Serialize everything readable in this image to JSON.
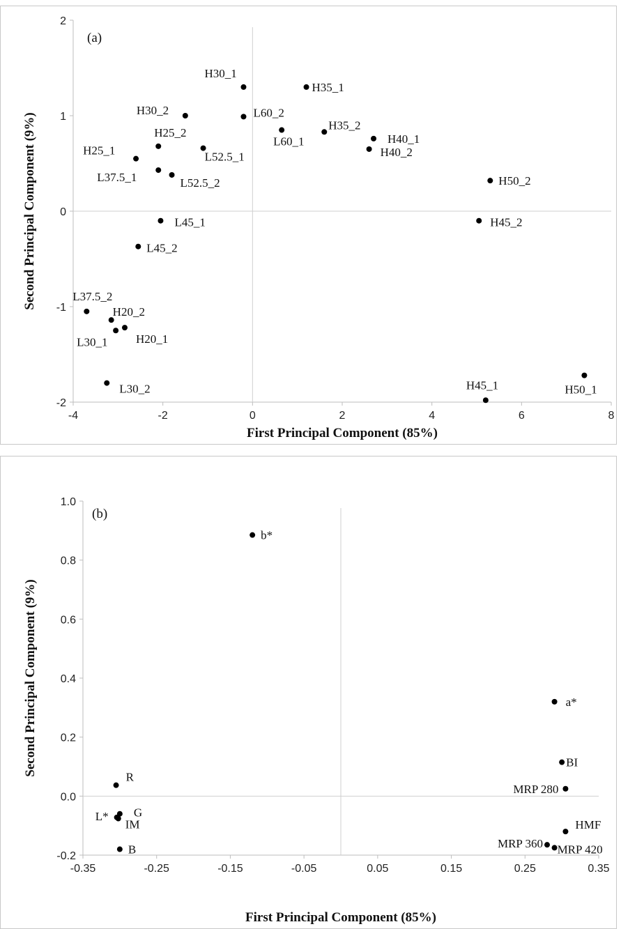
{
  "chart_data": [
    {
      "type": "scatter",
      "panel": "(a)",
      "xlabel": "First Principal Component (85%)",
      "ylabel": "Second Principal Component (9%)",
      "xlim": [
        -4,
        8
      ],
      "ylim": [
        -2,
        2
      ],
      "xticks": [
        "-4",
        "-2",
        "0",
        "2",
        "4",
        "6",
        "8"
      ],
      "yticks": [
        "-2",
        "-1",
        "0",
        "1",
        "2"
      ],
      "grid": false,
      "points": [
        {
          "label": "H30_1",
          "x": -0.2,
          "y": 1.3
        },
        {
          "label": "H35_1",
          "x": 1.2,
          "y": 1.3
        },
        {
          "label": "H30_2",
          "x": -1.5,
          "y": 1.0
        },
        {
          "label": "L60_2",
          "x": -0.2,
          "y": 0.99
        },
        {
          "label": "H25_2",
          "x": -2.1,
          "y": 0.68
        },
        {
          "label": "L60_1",
          "x": 0.65,
          "y": 0.85
        },
        {
          "label": "H35_2",
          "x": 1.6,
          "y": 0.83
        },
        {
          "label": "H40_1",
          "x": 2.7,
          "y": 0.76
        },
        {
          "label": "H40_2",
          "x": 2.6,
          "y": 0.65
        },
        {
          "label": "H25_1",
          "x": -2.6,
          "y": 0.55
        },
        {
          "label": "L52.5_1",
          "x": -1.1,
          "y": 0.66
        },
        {
          "label": "L37.5_1",
          "x": -2.1,
          "y": 0.43
        },
        {
          "label": "L52.5_2",
          "x": -1.8,
          "y": 0.38
        },
        {
          "label": "H50_2",
          "x": 5.3,
          "y": 0.32
        },
        {
          "label": "L45_1",
          "x": -2.05,
          "y": -0.1
        },
        {
          "label": "H45_2",
          "x": 5.05,
          "y": -0.1
        },
        {
          "label": "L45_2",
          "x": -2.55,
          "y": -0.37
        },
        {
          "label": "L37.5_2",
          "x": -3.7,
          "y": -1.05
        },
        {
          "label": "H20_2",
          "x": -3.15,
          "y": -1.14
        },
        {
          "label": "L30_1",
          "x": -3.05,
          "y": -1.25
        },
        {
          "label": "H20_1",
          "x": -2.85,
          "y": -1.22
        },
        {
          "label": "L30_2",
          "x": -3.25,
          "y": -1.8
        },
        {
          "label": "H45_1",
          "x": 5.2,
          "y": -1.98
        },
        {
          "label": "H50_1",
          "x": 7.4,
          "y": -1.72
        }
      ]
    },
    {
      "type": "scatter",
      "panel": "(b)",
      "xlabel": "First Principal Component (85%)",
      "ylabel": "Second Principal Component (9%)",
      "xlim": [
        -0.35,
        0.35
      ],
      "ylim": [
        -0.2,
        1.0
      ],
      "xticks": [
        "-0.35",
        "-0.25",
        "-0.15",
        "-0.05",
        "0.05",
        "0.15",
        "0.25",
        "0.35"
      ],
      "yticks": [
        "-0.2",
        "0.0",
        "0.2",
        "0.4",
        "0.6",
        "0.8",
        "1.0"
      ],
      "grid": false,
      "points": [
        {
          "label": "b*",
          "x": -0.12,
          "y": 0.885
        },
        {
          "label": "a*",
          "x": 0.29,
          "y": 0.32
        },
        {
          "label": "BI",
          "x": 0.3,
          "y": 0.115
        },
        {
          "label": "MRP 280",
          "x": 0.305,
          "y": 0.025
        },
        {
          "label": "HMF",
          "x": 0.305,
          "y": -0.12
        },
        {
          "label": "MRP 360",
          "x": 0.28,
          "y": -0.165
        },
        {
          "label": "MRP 420",
          "x": 0.29,
          "y": -0.175
        },
        {
          "label": "R",
          "x": -0.305,
          "y": 0.037
        },
        {
          "label": "G",
          "x": -0.3,
          "y": -0.06
        },
        {
          "label": "L*",
          "x": -0.304,
          "y": -0.072
        },
        {
          "label": "IM",
          "x": -0.302,
          "y": -0.076
        },
        {
          "label": "B",
          "x": -0.3,
          "y": -0.18
        }
      ]
    }
  ]
}
